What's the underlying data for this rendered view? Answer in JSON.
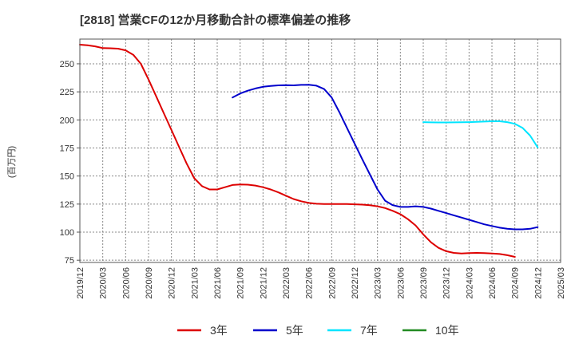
{
  "chart_data": {
    "type": "line",
    "title": "[2818]  営業CFの12か月移動合計の標準偏差の推移",
    "ylabel": "(百万円)",
    "xlabel": "",
    "ylim": [
      73,
      272
    ],
    "y_ticks": [
      75,
      100,
      125,
      150,
      175,
      200,
      225,
      250
    ],
    "x_tick_labels": [
      "2019/12",
      "2020/03",
      "2020/06",
      "2020/09",
      "2020/12",
      "2021/03",
      "2021/06",
      "2021/09",
      "2021/12",
      "2022/03",
      "2022/06",
      "2022/09",
      "2022/12",
      "2023/03",
      "2023/06",
      "2023/09",
      "2023/12",
      "2024/03",
      "2024/06",
      "2024/09",
      "2024/12",
      "2025/03"
    ],
    "grid": true,
    "legend_position": "bottom",
    "series": [
      {
        "name": "3年",
        "color": "#dd0000",
        "points": [
          [
            "2019/12",
            267
          ],
          [
            "2020/01",
            266.5
          ],
          [
            "2020/02",
            265.5
          ],
          [
            "2020/03",
            264
          ],
          [
            "2020/04",
            263.8
          ],
          [
            "2020/05",
            263.5
          ],
          [
            "2020/06",
            262
          ],
          [
            "2020/07",
            258
          ],
          [
            "2020/08",
            250
          ],
          [
            "2020/09",
            236
          ],
          [
            "2020/10",
            221
          ],
          [
            "2020/11",
            206
          ],
          [
            "2020/12",
            191
          ],
          [
            "2021/01",
            176
          ],
          [
            "2021/02",
            161
          ],
          [
            "2021/03",
            148
          ],
          [
            "2021/04",
            141
          ],
          [
            "2021/05",
            138
          ],
          [
            "2021/06",
            138
          ],
          [
            "2021/07",
            140
          ],
          [
            "2021/08",
            142
          ],
          [
            "2021/09",
            142.5
          ],
          [
            "2021/10",
            142.3
          ],
          [
            "2021/11",
            141.5
          ],
          [
            "2021/12",
            140
          ],
          [
            "2022/01",
            138
          ],
          [
            "2022/02",
            135.5
          ],
          [
            "2022/03",
            132.5
          ],
          [
            "2022/04",
            129.5
          ],
          [
            "2022/05",
            127.5
          ],
          [
            "2022/06",
            126
          ],
          [
            "2022/07",
            125.3
          ],
          [
            "2022/08",
            125
          ],
          [
            "2022/09",
            125
          ],
          [
            "2022/10",
            125
          ],
          [
            "2022/11",
            125
          ],
          [
            "2022/12",
            124.8
          ],
          [
            "2023/01",
            124.5
          ],
          [
            "2023/02",
            124
          ],
          [
            "2023/03",
            123
          ],
          [
            "2023/04",
            121.5
          ],
          [
            "2023/05",
            119
          ],
          [
            "2023/06",
            116
          ],
          [
            "2023/07",
            111.5
          ],
          [
            "2023/08",
            106
          ],
          [
            "2023/09",
            98
          ],
          [
            "2023/10",
            91
          ],
          [
            "2023/11",
            86
          ],
          [
            "2023/12",
            83
          ],
          [
            "2024/01",
            81.5
          ],
          [
            "2024/02",
            81
          ],
          [
            "2024/03",
            81.3
          ],
          [
            "2024/04",
            81.5
          ],
          [
            "2024/05",
            81.3
          ],
          [
            "2024/06",
            81
          ],
          [
            "2024/07",
            80.5
          ],
          [
            "2024/08",
            79.5
          ],
          [
            "2024/09",
            78
          ]
        ]
      },
      {
        "name": "5年",
        "color": "#0000cc",
        "points": [
          [
            "2021/08",
            220
          ],
          [
            "2021/09",
            223.5
          ],
          [
            "2021/10",
            226
          ],
          [
            "2021/11",
            228
          ],
          [
            "2021/12",
            229.5
          ],
          [
            "2022/01",
            230.3
          ],
          [
            "2022/02",
            230.8
          ],
          [
            "2022/03",
            231
          ],
          [
            "2022/04",
            230.8
          ],
          [
            "2022/05",
            231.2
          ],
          [
            "2022/06",
            231.3
          ],
          [
            "2022/07",
            230.5
          ],
          [
            "2022/08",
            227.5
          ],
          [
            "2022/09",
            220
          ],
          [
            "2022/10",
            207
          ],
          [
            "2022/11",
            193
          ],
          [
            "2022/12",
            179
          ],
          [
            "2023/01",
            165
          ],
          [
            "2023/02",
            151.5
          ],
          [
            "2023/03",
            138
          ],
          [
            "2023/04",
            128
          ],
          [
            "2023/05",
            124
          ],
          [
            "2023/06",
            122.5
          ],
          [
            "2023/07",
            122.5
          ],
          [
            "2023/08",
            123
          ],
          [
            "2023/09",
            122.5
          ],
          [
            "2023/10",
            121
          ],
          [
            "2023/11",
            119
          ],
          [
            "2023/12",
            117
          ],
          [
            "2024/01",
            115
          ],
          [
            "2024/02",
            113
          ],
          [
            "2024/03",
            111
          ],
          [
            "2024/04",
            109
          ],
          [
            "2024/05",
            107
          ],
          [
            "2024/06",
            105.5
          ],
          [
            "2024/07",
            104
          ],
          [
            "2024/08",
            103
          ],
          [
            "2024/09",
            102.5
          ],
          [
            "2024/10",
            102.5
          ],
          [
            "2024/11",
            103
          ],
          [
            "2024/12",
            104.5
          ]
        ]
      },
      {
        "name": "7年",
        "color": "#00e5ff",
        "points": [
          [
            "2023/09",
            198
          ],
          [
            "2023/10",
            197.8
          ],
          [
            "2023/11",
            197.7
          ],
          [
            "2023/12",
            197.7
          ],
          [
            "2024/01",
            197.8
          ],
          [
            "2024/02",
            197.9
          ],
          [
            "2024/03",
            198
          ],
          [
            "2024/04",
            198.2
          ],
          [
            "2024/05",
            198.5
          ],
          [
            "2024/06",
            198.8
          ],
          [
            "2024/07",
            198.8
          ],
          [
            "2024/08",
            198
          ],
          [
            "2024/09",
            196.5
          ],
          [
            "2024/10",
            193
          ],
          [
            "2024/11",
            186
          ],
          [
            "2024/12",
            175.5
          ]
        ]
      },
      {
        "name": "10年",
        "color": "#228b22",
        "points": []
      }
    ]
  }
}
